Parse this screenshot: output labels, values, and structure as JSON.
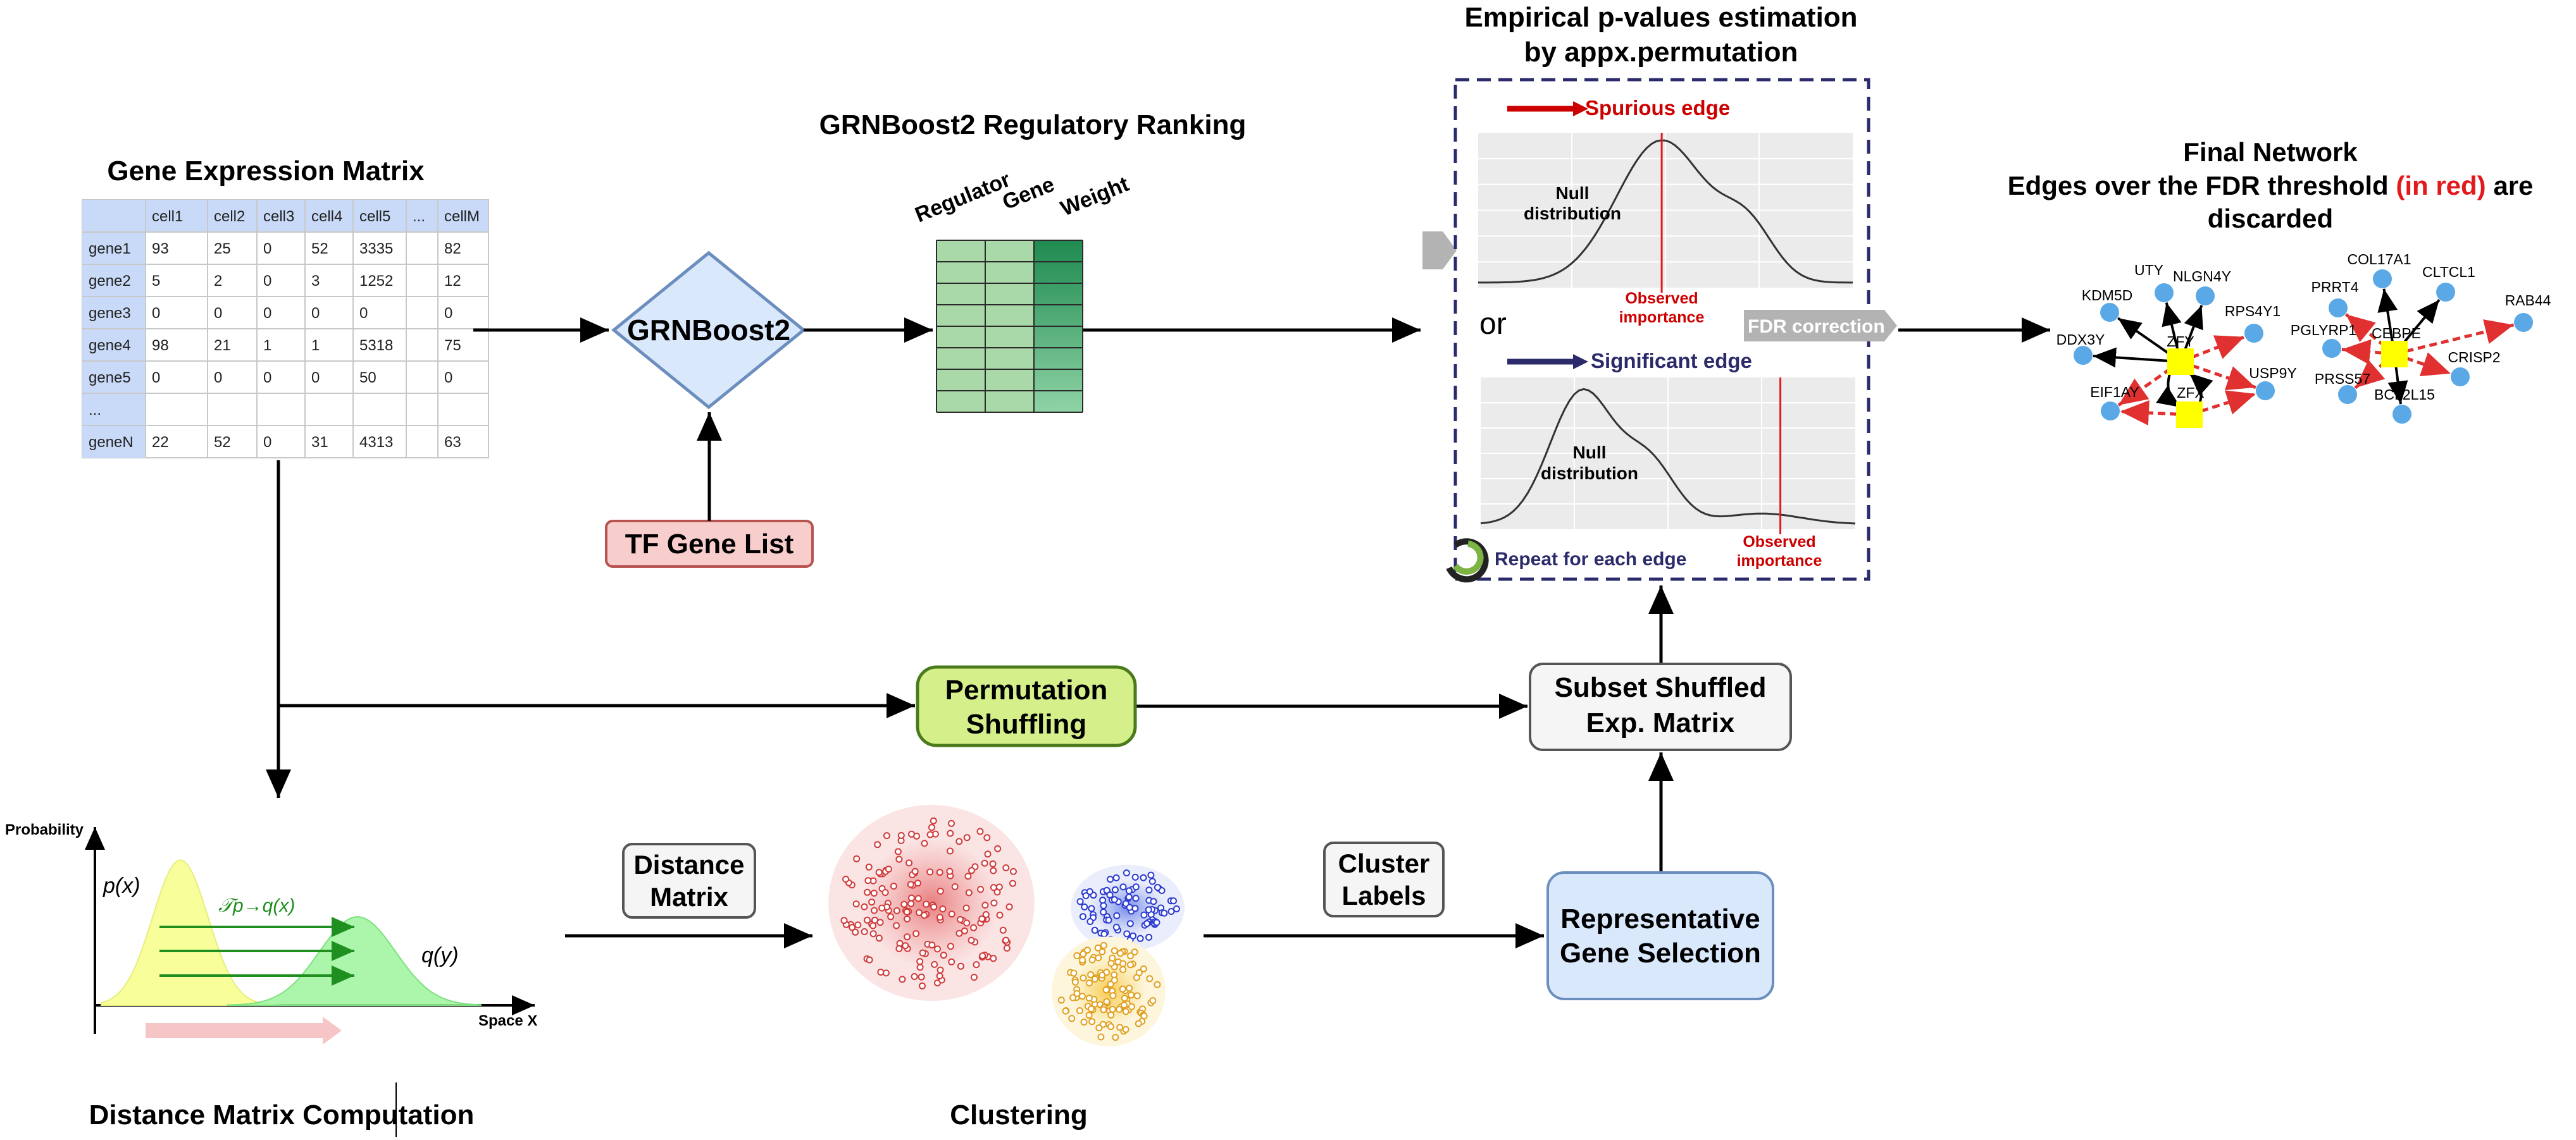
{
  "gene_matrix": {
    "title": "Gene Expression Matrix",
    "columns": [
      "cell1",
      "cell2",
      "cell3",
      "cell4",
      "cell5",
      "...",
      "cellM"
    ],
    "rows": [
      {
        "label": "gene1",
        "values": [
          "93",
          "25",
          "0",
          "52",
          "3335",
          "",
          "82"
        ]
      },
      {
        "label": "gene2",
        "values": [
          "5",
          "2",
          "0",
          "3",
          "1252",
          "",
          "12"
        ]
      },
      {
        "label": "gene3",
        "values": [
          "0",
          "0",
          "0",
          "0",
          "0",
          "",
          "0"
        ]
      },
      {
        "label": "gene4",
        "values": [
          "98",
          "21",
          "1",
          "1",
          "5318",
          "",
          "75"
        ]
      },
      {
        "label": "gene5",
        "values": [
          "0",
          "0",
          "0",
          "0",
          "50",
          "",
          "0"
        ]
      },
      {
        "label": "...",
        "values": [
          "",
          "",
          "",
          "",
          "",
          "",
          ""
        ]
      },
      {
        "label": "geneN",
        "values": [
          "22",
          "52",
          "0",
          "31",
          "4313",
          "",
          "63"
        ]
      }
    ],
    "header_color": "#c9daf8"
  },
  "grnboost": {
    "label": "GRNBoost2",
    "fill": "#dae8fc",
    "stroke": "#6c8ebf"
  },
  "tf_list": {
    "label": "TF Gene List",
    "fill": "#f8cecc",
    "stroke": "#b85450"
  },
  "ranking": {
    "title": "GRNBoost2 Regulatory Ranking",
    "columns": [
      "Regulator",
      "Gene",
      "Weight"
    ],
    "rows": 8,
    "light_green": "#a9d8a9",
    "dark_green": "#1e8a50"
  },
  "pvalue": {
    "title_line1": "Empirical p-values estimation",
    "title_line2": "by  appx.permutation",
    "spurious": {
      "label": "Spurious edge",
      "color": "#cc0000"
    },
    "significant": {
      "label": "Significant edge",
      "color": "#2b2b6b"
    },
    "null_label_line1": "Null",
    "null_label_line2": "distribution",
    "observed_line1": "Observed",
    "observed_line2": "importance",
    "or_label": "or",
    "fdr_label": "FDR correction",
    "repeat_label": "Repeat for each edge",
    "box_color": "#2b2b6b"
  },
  "final_network": {
    "title_line1": "Final Network",
    "title_line2_prefix": "Edges over the FDR threshold ",
    "title_line2_red": "(in red)",
    "title_line2_suffix": " are",
    "title_line3": "discarded",
    "hubs": [
      "ZFY",
      "ZFX",
      "CEBPE"
    ],
    "left_genes": [
      "UTY",
      "NLGN4Y",
      "KDM5D",
      "RPS4Y1",
      "DDX3Y",
      "USP9Y",
      "EIF1AY"
    ],
    "right_genes": [
      "COL17A1",
      "CLTCL1",
      "PRRT4",
      "RAB44",
      "PGLYRP1",
      "CRISP2",
      "PRSS57",
      "BCL2L15"
    ],
    "node_color": "#5aa9e6",
    "hub_color": "#ffff00",
    "discard_color": "#e03030"
  },
  "permutation": {
    "label_line1": "Permutation",
    "label_line2": "Shuffling",
    "fill": "#d5f08a",
    "stroke": "#4a7a1a"
  },
  "subset": {
    "label_line1": "Subset Shuffled",
    "label_line2": "Exp. Matrix",
    "fill": "#f5f5f5",
    "stroke": "#555555"
  },
  "representative": {
    "label_line1": "Representative",
    "label_line2": "Gene Selection",
    "fill": "#dae8fc",
    "stroke": "#6c8ebf"
  },
  "distance_matrix": {
    "label_line1": "Distance",
    "label_line2": "Matrix"
  },
  "cluster_labels": {
    "label_line1": "Cluster",
    "label_line2": "Labels"
  },
  "transport": {
    "y_label": "Probability",
    "x_label": "Space X",
    "p_label": "p(x)",
    "q_label": "q(y)",
    "t_label": "𝒯p→q(x)",
    "caption": "Distance Matrix Computation"
  },
  "clustering": {
    "caption": "Clustering"
  }
}
